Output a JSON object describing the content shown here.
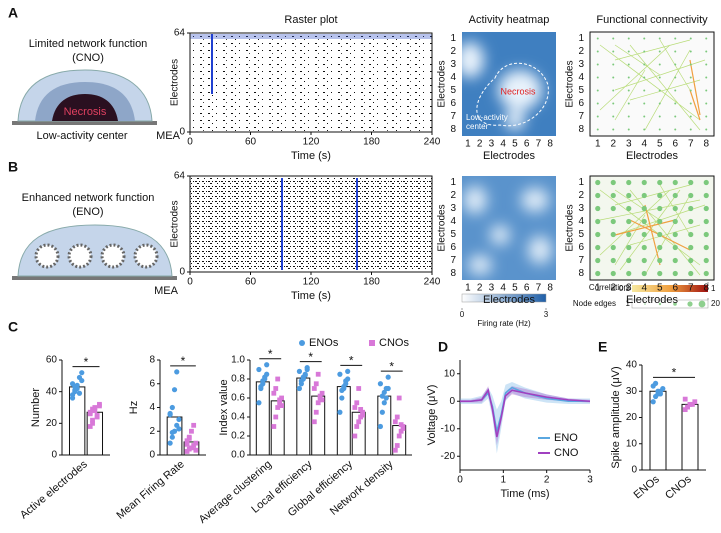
{
  "figure": {
    "panel_labels": [
      "A",
      "B",
      "C",
      "D",
      "E"
    ],
    "A": {
      "title_lines": [
        "Limited network function",
        "(CNO)"
      ],
      "necrosis": "Necrosis",
      "low_activity": "Low-activity center",
      "mea": "MEA",
      "heatmap_necrosis": "Necrosis",
      "heatmap_low": [
        "Low-activity",
        "center"
      ]
    },
    "B": {
      "title_lines": [
        "Enhanced network function",
        "(ENO)"
      ],
      "mea": "MEA"
    },
    "raster": {
      "title": "Raster plot",
      "xlabel": "Time (s)",
      "ylabel": "Electrodes",
      "xlim": [
        0,
        240
      ],
      "xticks": [
        0,
        60,
        120,
        180,
        240
      ],
      "ylim": [
        0,
        64
      ],
      "yticks": [
        0,
        64
      ]
    },
    "heatmap": {
      "title": "Activity heatmap",
      "xlabel": "Electrodes",
      "ylabel": "Electrodes",
      "ticks": [
        1,
        2,
        3,
        4,
        5,
        6,
        7,
        8
      ],
      "colorbar": {
        "label": "Firing rate (Hz)",
        "lim": [
          0,
          3
        ],
        "ticks": [
          0,
          3
        ]
      }
    },
    "connectivity": {
      "title": "Functional connectivity",
      "xlabel": "Electrodes",
      "ylabel": "Electrodes",
      "ticks": [
        1,
        2,
        3,
        4,
        5,
        6,
        7,
        8
      ],
      "correlation": {
        "label": "Correlation",
        "lim": [
          0.3,
          1
        ],
        "ticks": [
          0.3,
          1
        ]
      },
      "node_edges": {
        "label": "Node edges",
        "lim": [
          1,
          20
        ],
        "ticks": [
          1,
          20
        ]
      }
    }
  },
  "chart_data": [
    {
      "type": "bar",
      "ylabel": "Number",
      "categories": [
        "Active electrodes"
      ],
      "ylim": [
        0,
        60
      ],
      "yticks": [
        0,
        20,
        40,
        60
      ],
      "annotations": [
        "*"
      ],
      "series": [
        {
          "color": "#4c9be0",
          "values": [
            43
          ],
          "points": [
            [
              38,
              41,
              44,
              49,
              52,
              45,
              40,
              42,
              39,
              47,
              36,
              43
            ]
          ]
        },
        {
          "color": "#d878d8",
          "values": [
            27
          ],
          "points": [
            [
              27,
              22,
              30,
              25,
              31,
              18,
              29,
              28,
              24,
              32,
              26,
              20
            ]
          ]
        }
      ]
    },
    {
      "type": "bar",
      "ylabel": "Hz",
      "categories": [
        "Mean Firing Rate"
      ],
      "ylim": [
        0,
        8
      ],
      "yticks": [
        0,
        2,
        4,
        6,
        8
      ],
      "annotations": [
        "*"
      ],
      "series": [
        {
          "color": "#4c9be0",
          "values": [
            3.2
          ],
          "points": [
            [
              1.0,
              1.5,
              2.0,
              2.5,
              3.0,
              3.5,
              4.0,
              5.5,
              7.0,
              2.2,
              3.4,
              1.9
            ]
          ]
        },
        {
          "color": "#d878d8",
          "values": [
            1.1
          ],
          "points": [
            [
              0.3,
              0.5,
              0.6,
              0.8,
              1.0,
              1.2,
              1.5,
              2.0,
              2.5,
              0.4,
              0.9,
              1.4
            ]
          ]
        }
      ]
    },
    {
      "type": "bar",
      "ylabel": "Index value",
      "categories": [
        "Average clustering",
        "Local efficiency",
        "Global efficiency",
        "Network density"
      ],
      "ylim": [
        0,
        1
      ],
      "yticks": [
        {
          "value": 0,
          "label": "0.0"
        },
        0.2,
        0.4,
        0.6,
        0.8,
        {
          "value": 1,
          "label": "1.0"
        }
      ],
      "annotations": [
        "*",
        "*",
        "*",
        "*"
      ],
      "legend": true,
      "series": [
        {
          "name": "ENOs",
          "color": "#4c9be0",
          "values": [
            0.77,
            0.81,
            0.72,
            0.62
          ],
          "points": [
            [
              0.55,
              0.7,
              0.75,
              0.8,
              0.85,
              0.9,
              0.72,
              0.78,
              0.82,
              0.95
            ],
            [
              0.7,
              0.75,
              0.8,
              0.85,
              0.9,
              0.88,
              0.78,
              0.82,
              0.84,
              0.92
            ],
            [
              0.45,
              0.6,
              0.7,
              0.75,
              0.8,
              0.85,
              0.68,
              0.72,
              0.78,
              0.88
            ],
            [
              0.3,
              0.45,
              0.55,
              0.6,
              0.7,
              0.75,
              0.62,
              0.66,
              0.7,
              0.82
            ]
          ]
        },
        {
          "name": "CNOs",
          "color": "#d878d8",
          "values": [
            0.57,
            0.62,
            0.45,
            0.31
          ],
          "points": [
            [
              0.3,
              0.4,
              0.5,
              0.55,
              0.6,
              0.65,
              0.7,
              0.8,
              0.58,
              0.52
            ],
            [
              0.35,
              0.45,
              0.55,
              0.6,
              0.65,
              0.7,
              0.75,
              0.85,
              0.62,
              0.58
            ],
            [
              0.2,
              0.3,
              0.35,
              0.4,
              0.45,
              0.5,
              0.55,
              0.7,
              0.48,
              0.42
            ],
            [
              0.05,
              0.1,
              0.2,
              0.25,
              0.3,
              0.35,
              0.4,
              0.6,
              0.32,
              0.28
            ]
          ]
        }
      ]
    },
    {
      "type": "line",
      "ylabel": "Voltage (μV)",
      "xlabel": "Time (ms)",
      "xlim": [
        0,
        3
      ],
      "xticks": [
        0,
        1,
        2,
        3
      ],
      "ylim": [
        -25,
        15
      ],
      "yticks": [
        -20,
        -10,
        0,
        10
      ],
      "x": [
        0,
        0.25,
        0.5,
        0.65,
        0.75,
        0.85,
        0.95,
        1.05,
        1.2,
        1.5,
        2.0,
        2.5,
        3.0
      ],
      "series": [
        {
          "name": "ENO",
          "color": "#5aa7e0",
          "values": [
            0,
            0,
            0.5,
            3,
            -2,
            -11,
            -5,
            3,
            5,
            3,
            1,
            0,
            0
          ],
          "errors": [
            1,
            1,
            1.5,
            2,
            4,
            8,
            5,
            3,
            2,
            2,
            1.5,
            1,
            1
          ]
        },
        {
          "name": "CNO",
          "color": "#a040c0",
          "values": [
            0,
            0,
            0.5,
            4,
            -3,
            -13,
            -6,
            2,
            4,
            3,
            1.5,
            0.5,
            0
          ],
          "errors": [
            0.5,
            0.5,
            1,
            1.5,
            2,
            3,
            2,
            1.5,
            1.5,
            1.5,
            1,
            0.5,
            0.5
          ]
        }
      ]
    },
    {
      "type": "bar",
      "ylabel": "Spike amplitude (μV)",
      "categories": [
        "ENOs",
        "CNOs"
      ],
      "colors": [
        "#4c9be0",
        "#d878d8"
      ],
      "ylim": [
        0,
        40
      ],
      "yticks": [
        0,
        10,
        20,
        30,
        40
      ],
      "annotations": [
        "*"
      ],
      "values": [
        30,
        25
      ],
      "points": [
        [
          26,
          28,
          29,
          30,
          31,
          32,
          33,
          30,
          29
        ],
        [
          23,
          24,
          25,
          25,
          26,
          27,
          24,
          25
        ]
      ]
    }
  ]
}
